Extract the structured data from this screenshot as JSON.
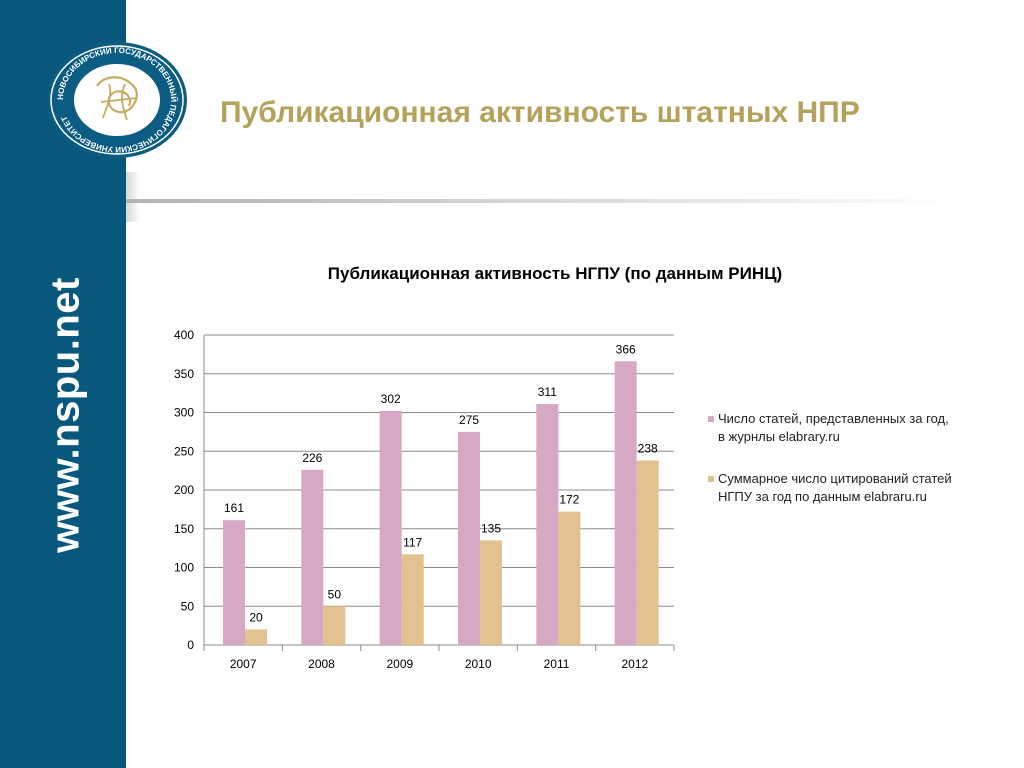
{
  "header": {
    "title": "Публикационная активность штатных НПР"
  },
  "sidebar": {
    "url": "www.nspu.net"
  },
  "logo": {
    "text": "НОВОСИБИРСКИЙ ГОСУДАРСТВЕННЫЙ ПЕДАГОГИЧЕСКИЙ УНИВЕРСИТЕТ"
  },
  "colors": {
    "sidebar": "#08587d",
    "title": "#b4a15a",
    "series1": "#d7a7c3",
    "series2": "#e2c08f"
  },
  "chart_data": {
    "type": "bar",
    "title": "Публикационная активность НГПУ   (по данным РИНЦ)",
    "categories": [
      "2007",
      "2008",
      "2009",
      "2010",
      "2011",
      "2012"
    ],
    "series": [
      {
        "name": "Число статей, представленных за год, в журнлы elabrary.ru",
        "values": [
          161,
          226,
          302,
          275,
          311,
          366
        ],
        "color": "#d7a7c3"
      },
      {
        "name": "Суммарное число цитирований статей НГПУ за год по данным elabraru.ru",
        "values": [
          20,
          50,
          117,
          135,
          172,
          238
        ],
        "color": "#e2c08f"
      }
    ],
    "ylim": [
      0,
      400
    ],
    "yticks": [
      0,
      50,
      100,
      150,
      200,
      250,
      300,
      350,
      400
    ],
    "grid": true,
    "legend": "right",
    "data_labels": true
  }
}
